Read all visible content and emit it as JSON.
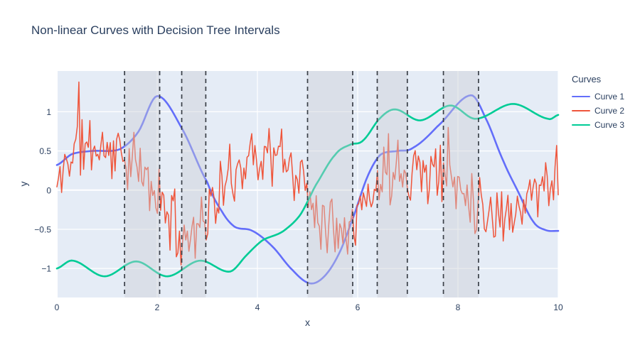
{
  "title": "Non-linear Curves with Decision Tree Intervals",
  "legend": {
    "title": "Curves",
    "items": [
      {
        "label": "Curve 1",
        "color": "#636EFA"
      },
      {
        "label": "Curve 2",
        "color": "#EF553B"
      },
      {
        "label": "Curve 3",
        "color": "#00CC96"
      }
    ]
  },
  "chart_data": {
    "type": "line",
    "title": "Non-linear Curves with Decision Tree Intervals",
    "xlabel": "x",
    "ylabel": "y",
    "xlim": [
      0,
      10
    ],
    "ylim": [
      -1.37,
      1.52
    ],
    "x_ticks": [
      0,
      2,
      4,
      6,
      8,
      10
    ],
    "y_ticks": [
      -1,
      -0.5,
      0,
      0.5,
      1
    ],
    "grid": true,
    "legend_position": "right",
    "background": "#E5ECF6",
    "grid_color": "#FFFFFF",
    "text_color": "#2a3f5f",
    "series": [
      {
        "name": "Curve 1",
        "color": "#636EFA",
        "style": "smooth",
        "width": 2.6,
        "knots": [
          [
            0,
            0.32
          ],
          [
            0.3,
            0.46
          ],
          [
            0.7,
            0.5
          ],
          [
            1.25,
            0.52
          ],
          [
            1.62,
            0.74
          ],
          [
            2,
            1.2
          ],
          [
            2.5,
            0.78
          ],
          [
            3,
            0.1
          ],
          [
            3.3,
            -0.28
          ],
          [
            3.55,
            -0.47
          ],
          [
            3.9,
            -0.52
          ],
          [
            4.3,
            -0.72
          ],
          [
            4.7,
            -1.02
          ],
          [
            5.05,
            -1.19
          ],
          [
            5.35,
            -1.09
          ],
          [
            5.65,
            -0.78
          ],
          [
            5.95,
            -0.28
          ],
          [
            6.2,
            0.18
          ],
          [
            6.45,
            0.45
          ],
          [
            6.8,
            0.5
          ],
          [
            7.1,
            0.54
          ],
          [
            7.6,
            0.82
          ],
          [
            8.25,
            1.21
          ],
          [
            8.55,
            0.92
          ],
          [
            8.9,
            0.38
          ],
          [
            9.2,
            -0.02
          ],
          [
            9.5,
            -0.4
          ],
          [
            9.75,
            -0.51
          ],
          [
            10,
            -0.52
          ]
        ]
      },
      {
        "name": "Curve 2",
        "color": "#EF553B",
        "style": "noisy",
        "width": 1.5,
        "knots": [
          [
            0,
            0.02
          ],
          [
            0.25,
            0.45
          ],
          [
            0.6,
            0.55
          ],
          [
            1,
            0.52
          ],
          [
            1.35,
            0.44
          ],
          [
            1.7,
            0.18
          ],
          [
            2.05,
            -0.12
          ],
          [
            2.45,
            -0.5
          ],
          [
            2.75,
            -0.44
          ],
          [
            3,
            -0.28
          ],
          [
            3.35,
            0.04
          ],
          [
            3.75,
            0.38
          ],
          [
            4.05,
            0.45
          ],
          [
            4.5,
            0.4
          ],
          [
            4.8,
            0.18
          ],
          [
            5.05,
            -0.08
          ],
          [
            5.35,
            -0.38
          ],
          [
            5.65,
            -0.38
          ],
          [
            5.95,
            -0.3
          ],
          [
            6.25,
            -0.08
          ],
          [
            6.55,
            0.2
          ],
          [
            6.85,
            0.3
          ],
          [
            7.2,
            0.28
          ],
          [
            7.55,
            0.22
          ],
          [
            7.9,
            0.12
          ],
          [
            8.2,
            0
          ],
          [
            8.5,
            -0.2
          ],
          [
            8.8,
            -0.3
          ],
          [
            9.1,
            -0.22
          ],
          [
            9.5,
            -0.05
          ],
          [
            9.8,
            0.12
          ],
          [
            10,
            0.3
          ]
        ],
        "noise_amplitude": 0.5,
        "noise_seed": 11,
        "n_points": 320,
        "spikes": [
          [
            0.43,
            1.38
          ],
          [
            2.42,
            -0.8
          ],
          [
            2.62,
            -0.78
          ],
          [
            3.9,
            0.72
          ],
          [
            5.38,
            -0.8
          ],
          [
            6.6,
            0.72
          ],
          [
            7.82,
            0.8
          ],
          [
            8.72,
            -0.6
          ],
          [
            9.97,
            0.57
          ]
        ]
      },
      {
        "name": "Curve 3",
        "color": "#00CC96",
        "style": "smooth",
        "width": 2.6,
        "knots": [
          [
            0,
            -1
          ],
          [
            0.32,
            -0.9
          ],
          [
            0.95,
            -1.1
          ],
          [
            1.58,
            -0.91
          ],
          [
            2.2,
            -1.1
          ],
          [
            2.85,
            -0.9
          ],
          [
            3.45,
            -1.04
          ],
          [
            3.8,
            -0.82
          ],
          [
            4.1,
            -0.64
          ],
          [
            4.5,
            -0.53
          ],
          [
            4.85,
            -0.32
          ],
          [
            5.15,
            0.05
          ],
          [
            5.55,
            0.45
          ],
          [
            5.85,
            0.58
          ],
          [
            6.1,
            0.63
          ],
          [
            6.45,
            0.92
          ],
          [
            6.75,
            1.03
          ],
          [
            7.25,
            0.89
          ],
          [
            7.85,
            1.08
          ],
          [
            8.35,
            0.91
          ],
          [
            9.1,
            1.1
          ],
          [
            9.8,
            0.91
          ],
          [
            10,
            0.96
          ]
        ]
      }
    ],
    "splits": [
      1.35,
      2.05,
      2.49,
      2.97,
      5.0,
      5.9,
      6.39,
      6.99,
      7.71,
      8.41
    ],
    "intervals": [
      [
        1.35,
        2.05
      ],
      [
        2.49,
        2.97
      ],
      [
        5.0,
        5.9
      ],
      [
        6.39,
        6.99
      ],
      [
        7.71,
        8.41
      ]
    ],
    "split_line": {
      "color": "#3A3F47",
      "dash": [
        6,
        5
      ],
      "width": 1.7
    },
    "interval_fill": "rgba(203,205,211,0.42)"
  }
}
